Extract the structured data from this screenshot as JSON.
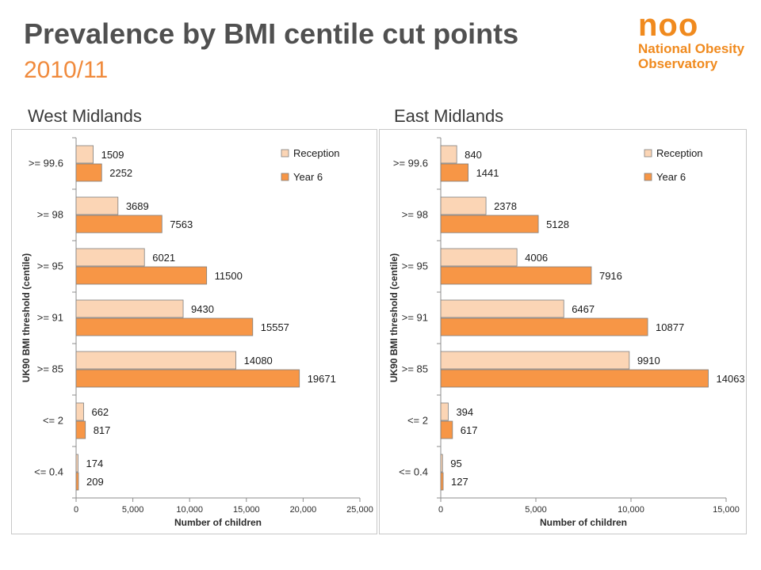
{
  "header": {
    "title": "Prevalence by BMI centile cut points",
    "subtitle": "2010/11"
  },
  "logo": {
    "mark": "noo",
    "line1": "National Obesity",
    "line2": "Observatory"
  },
  "colors": {
    "reception": "#fbd5b5",
    "year6": "#f79646",
    "bar_stroke": "#7f7f7f",
    "text": "#3a3a3a"
  },
  "chart_data": [
    {
      "heading": "West Midlands",
      "type": "bar",
      "orientation": "horizontal",
      "categories": [
        ">= 99.6",
        ">= 98",
        ">= 95",
        ">= 91",
        ">= 85",
        "<= 2",
        "<= 0.4"
      ],
      "series": [
        {
          "name": "Reception",
          "values": [
            1509,
            3689,
            6021,
            9430,
            14080,
            662,
            174
          ]
        },
        {
          "name": "Year 6",
          "values": [
            2252,
            7563,
            11500,
            15557,
            19671,
            817,
            209
          ]
        }
      ],
      "xlabel": "Number of children",
      "ylabel": "UK90 BMI threshold (centile)",
      "xlim": [
        0,
        25000
      ],
      "xticks": [
        0,
        5000,
        10000,
        15000,
        20000,
        25000
      ],
      "xtick_labels": [
        "0",
        "5,000",
        "10,000",
        "15,000",
        "20,000",
        "25,000"
      ],
      "legend": "top-right",
      "grid": false
    },
    {
      "heading": "East Midlands",
      "type": "bar",
      "orientation": "horizontal",
      "categories": [
        ">= 99.6",
        ">= 98",
        ">= 95",
        ">= 91",
        ">= 85",
        "<= 2",
        "<= 0.4"
      ],
      "series": [
        {
          "name": "Reception",
          "values": [
            840,
            2378,
            4006,
            6467,
            9910,
            394,
            95
          ]
        },
        {
          "name": "Year 6",
          "values": [
            1441,
            5128,
            7916,
            10877,
            14063,
            617,
            127
          ]
        }
      ],
      "xlabel": "Number of children",
      "ylabel": "UK90 BMI threshold (centile)",
      "xlim": [
        0,
        15000
      ],
      "xticks": [
        0,
        5000,
        10000,
        15000
      ],
      "xtick_labels": [
        "0",
        "5,000",
        "10,000",
        "15,000"
      ],
      "legend": "top-right",
      "grid": false
    }
  ]
}
